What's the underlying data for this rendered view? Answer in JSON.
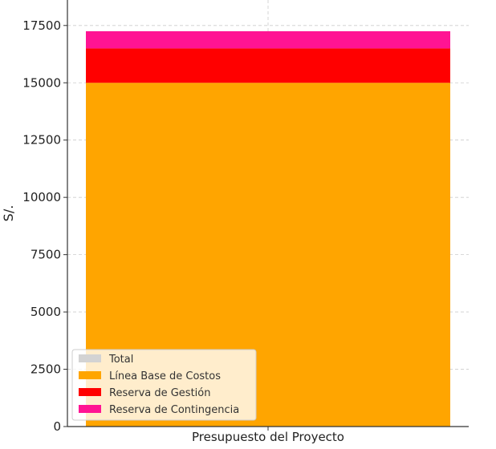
{
  "chart_data": {
    "type": "bar",
    "stacked": true,
    "title": "",
    "xlabel": "",
    "ylabel": "S/.",
    "categories": [
      "Presupuesto del Proyecto"
    ],
    "ylim": [
      0,
      17500
    ],
    "yticks": [
      0,
      2500,
      5000,
      7500,
      10000,
      12500,
      15000,
      17500
    ],
    "grid": true,
    "legend_position": "lower-left",
    "series": [
      {
        "name": "Total",
        "color": "#d3d3d3",
        "values": [
          17250
        ],
        "overlay": true
      },
      {
        "name": "Línea Base de Costos",
        "color": "#ffa500",
        "values": [
          15000
        ]
      },
      {
        "name": "Reserva de Gestión",
        "color": "#ff0000",
        "values": [
          1500
        ]
      },
      {
        "name": "Reserva de Contingencia",
        "color": "#ff1493",
        "values": [
          750
        ]
      }
    ]
  }
}
